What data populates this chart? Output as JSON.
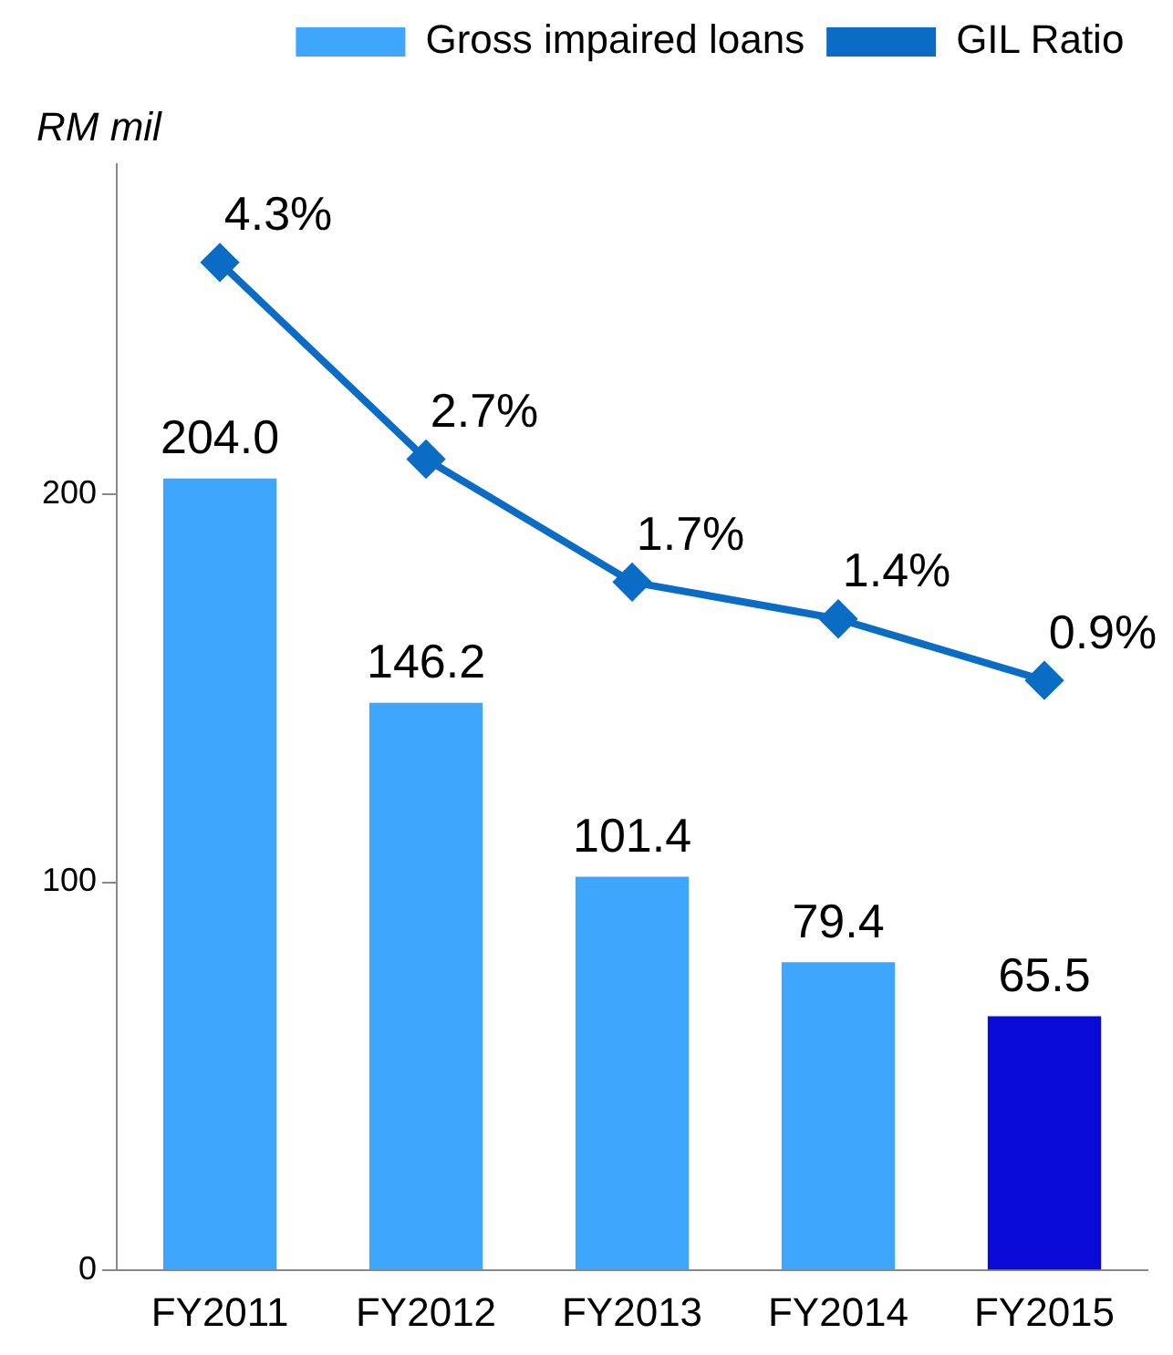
{
  "chart_data": {
    "type": "bar",
    "ylabel": "RM mil",
    "categories": [
      "FY2011",
      "FY2012",
      "FY2013",
      "FY2014",
      "FY2015"
    ],
    "series": [
      {
        "name": "Gross impaired loans",
        "color": "#3ea6fc",
        "colors": [
          "#3ea6fc",
          "#3ea6fc",
          "#3ea6fc",
          "#3ea6fc",
          "#0a0ad8"
        ],
        "values": [
          204.0,
          146.2,
          101.4,
          79.4,
          65.5
        ],
        "value_labels": [
          "204.0",
          "146.2",
          "101.4",
          "79.4",
          "65.5"
        ]
      },
      {
        "type": "line",
        "name": "GIL Ratio",
        "color": "#0b6cc6",
        "axis": "y2",
        "values": [
          4.3,
          2.7,
          1.7,
          1.4,
          0.9
        ],
        "value_labels": [
          "4.3%",
          "2.7%",
          "1.7%",
          "1.4%",
          "0.9%"
        ]
      }
    ],
    "ylim": [
      0,
      285
    ],
    "yticks": [
      0,
      100,
      200
    ],
    "y2lim": [
      -3.9,
      5.1
    ],
    "grid": false,
    "legend": "top",
    "marker": "diamond",
    "line_style": "solid"
  }
}
